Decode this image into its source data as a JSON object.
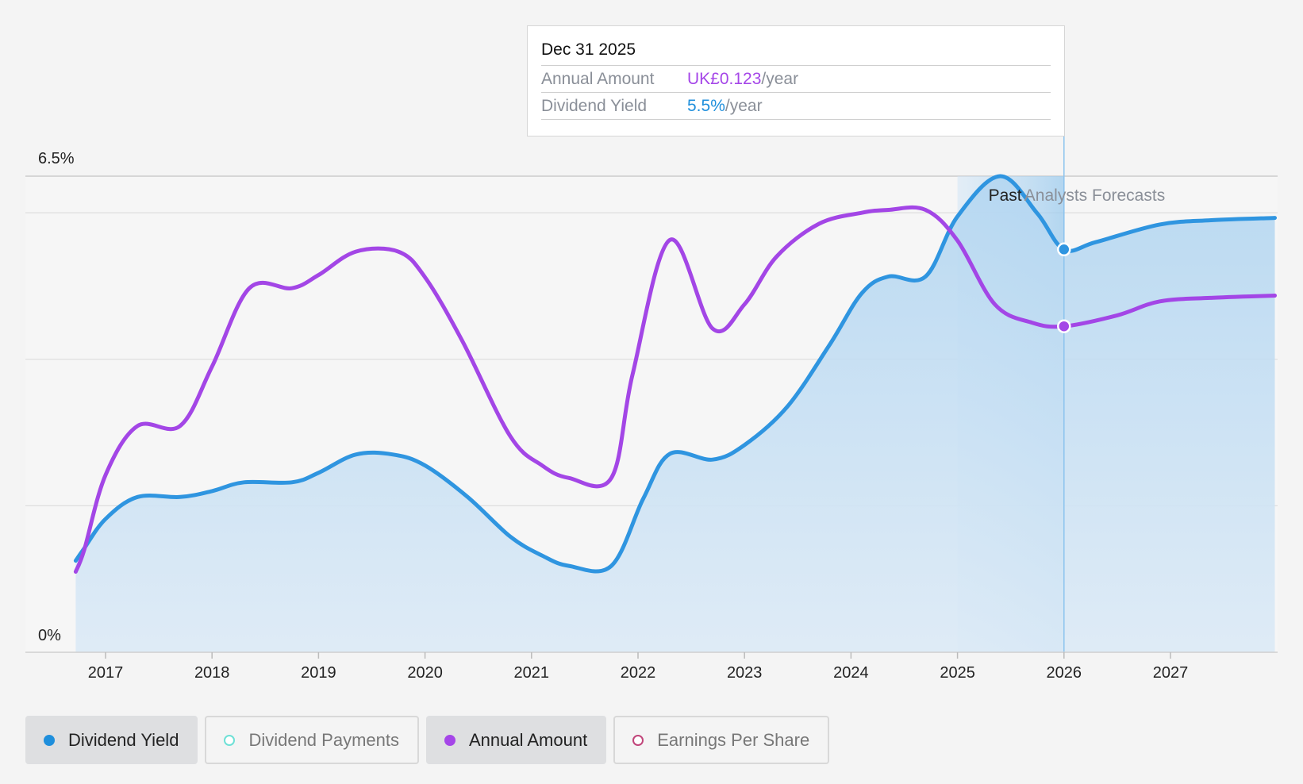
{
  "chart_data": {
    "type": "line",
    "x_ticks": [
      "2017",
      "2018",
      "2019",
      "2020",
      "2021",
      "2022",
      "2023",
      "2024",
      "2025",
      "2026",
      "2027"
    ],
    "y_tick_labels": [
      "6.5%",
      "0%"
    ],
    "ylim": [
      0,
      6.5
    ],
    "xlim": [
      2016.75,
      2027.98
    ],
    "grid": true,
    "regions": {
      "past_label": "Past",
      "forecast_label": "Analysts Forecasts",
      "past_start": 2025.0,
      "forecast_start": 2026.0
    },
    "series": [
      {
        "name": "Dividend Yield",
        "color": "#2f95e0",
        "area": true,
        "points": [
          [
            2016.72,
            1.25
          ],
          [
            2016.8,
            1.42
          ],
          [
            2017.0,
            1.82
          ],
          [
            2017.3,
            2.12
          ],
          [
            2017.7,
            2.12
          ],
          [
            2018.0,
            2.2
          ],
          [
            2018.3,
            2.32
          ],
          [
            2018.75,
            2.32
          ],
          [
            2019.0,
            2.45
          ],
          [
            2019.35,
            2.7
          ],
          [
            2019.7,
            2.7
          ],
          [
            2020.0,
            2.55
          ],
          [
            2020.4,
            2.12
          ],
          [
            2020.8,
            1.58
          ],
          [
            2021.1,
            1.32
          ],
          [
            2021.35,
            1.18
          ],
          [
            2021.75,
            1.18
          ],
          [
            2022.05,
            2.1
          ],
          [
            2022.3,
            2.71
          ],
          [
            2022.7,
            2.63
          ],
          [
            2023.0,
            2.83
          ],
          [
            2023.4,
            3.35
          ],
          [
            2023.8,
            4.2
          ],
          [
            2024.1,
            4.9
          ],
          [
            2024.35,
            5.13
          ],
          [
            2024.7,
            5.13
          ],
          [
            2025.0,
            5.95
          ],
          [
            2025.4,
            6.5
          ],
          [
            2025.75,
            5.99
          ],
          [
            2026.0,
            5.5
          ],
          [
            2026.3,
            5.6
          ],
          [
            2026.9,
            5.84
          ],
          [
            2027.4,
            5.9
          ],
          [
            2027.98,
            5.93
          ]
        ]
      },
      {
        "name": "Annual Amount",
        "color": "#a346e6",
        "area": false,
        "points": [
          [
            2016.72,
            1.1
          ],
          [
            2016.8,
            1.4
          ],
          [
            2017.0,
            2.42
          ],
          [
            2017.3,
            3.09
          ],
          [
            2017.7,
            3.09
          ],
          [
            2018.0,
            3.9
          ],
          [
            2018.35,
            4.97
          ],
          [
            2018.75,
            4.97
          ],
          [
            2019.0,
            5.15
          ],
          [
            2019.35,
            5.47
          ],
          [
            2019.75,
            5.47
          ],
          [
            2020.0,
            5.12
          ],
          [
            2020.35,
            4.25
          ],
          [
            2020.8,
            2.95
          ],
          [
            2021.1,
            2.55
          ],
          [
            2021.35,
            2.38
          ],
          [
            2021.75,
            2.38
          ],
          [
            2021.95,
            3.8
          ],
          [
            2022.3,
            5.63
          ],
          [
            2022.7,
            4.42
          ],
          [
            2023.0,
            4.75
          ],
          [
            2023.3,
            5.4
          ],
          [
            2023.7,
            5.85
          ],
          [
            2024.1,
            6.0
          ],
          [
            2024.35,
            6.04
          ],
          [
            2024.7,
            6.04
          ],
          [
            2025.0,
            5.62
          ],
          [
            2025.35,
            4.75
          ],
          [
            2025.7,
            4.5
          ],
          [
            2026.0,
            4.45
          ],
          [
            2026.5,
            4.6
          ],
          [
            2026.9,
            4.79
          ],
          [
            2027.4,
            4.84
          ],
          [
            2027.98,
            4.87
          ]
        ]
      }
    ],
    "highlight": {
      "x": 2026.0,
      "values": [
        5.5,
        4.45
      ]
    }
  },
  "tooltip": {
    "date": "Dec 31 2025",
    "amount_label": "Annual Amount",
    "amount_value": "UK£0.123",
    "amount_unit": "/year",
    "yield_label": "Dividend Yield",
    "yield_value": "5.5%",
    "yield_unit": "/year"
  },
  "legend": [
    {
      "label": "Dividend Yield",
      "color": "#1f8fdc",
      "active": true,
      "filled": true
    },
    {
      "label": "Dividend Payments",
      "color": "#6ee0d6",
      "active": false,
      "filled": false
    },
    {
      "label": "Annual Amount",
      "color": "#a546e8",
      "active": true,
      "filled": true
    },
    {
      "label": "Earnings Per Share",
      "color": "#c0457a",
      "active": false,
      "filled": false
    }
  ]
}
